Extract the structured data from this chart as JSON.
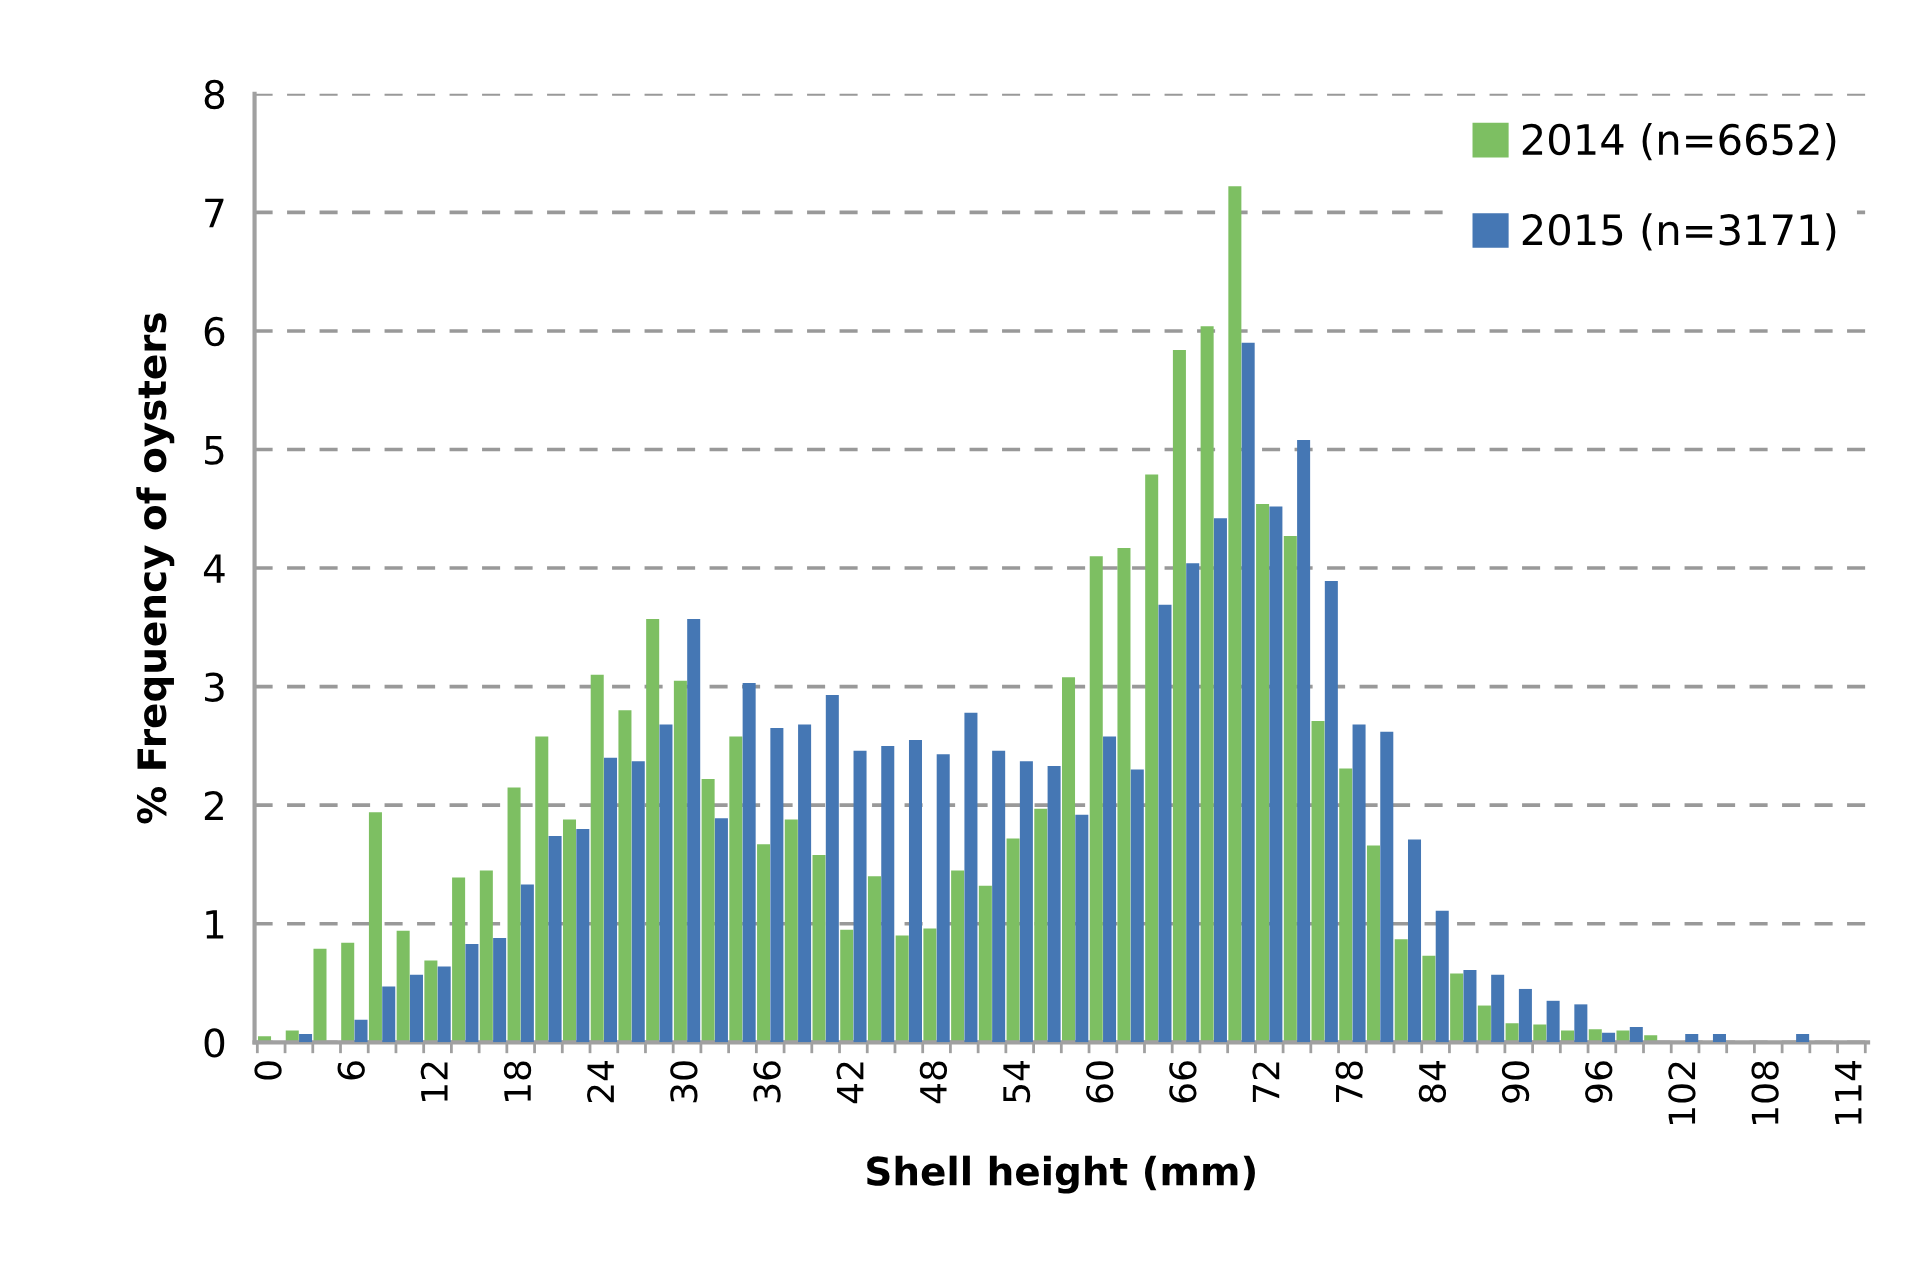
{
  "chart_data": {
    "type": "bar",
    "xlabel": "Shell height (mm)",
    "ylabel": "% Frequency of oysters",
    "categories": [
      "0",
      null,
      null,
      "6",
      null,
      null,
      "12",
      null,
      null,
      "18",
      null,
      null,
      "24",
      null,
      null,
      "30",
      null,
      null,
      "36",
      null,
      null,
      "42",
      null,
      null,
      "48",
      null,
      null,
      "54",
      null,
      null,
      "60",
      null,
      null,
      "66",
      null,
      null,
      "72",
      null,
      null,
      "78",
      null,
      null,
      "84",
      null,
      null,
      "90",
      null,
      null,
      "96",
      null,
      null,
      "102",
      null,
      null,
      "108",
      null,
      null,
      "114"
    ],
    "series": [
      {
        "name": "2014 (n=6652)",
        "color": "#7dbf62",
        "values": [
          0.05,
          0.1,
          0.79,
          0.84,
          1.94,
          0.94,
          0.69,
          1.39,
          1.45,
          2.15,
          2.58,
          1.88,
          3.1,
          2.8,
          3.57,
          3.05,
          2.22,
          2.58,
          1.67,
          1.88,
          1.58,
          0.95,
          1.4,
          0.9,
          0.96,
          1.45,
          1.32,
          1.72,
          1.97,
          3.08,
          4.1,
          4.17,
          4.79,
          5.84,
          6.04,
          7.22,
          4.54,
          4.27,
          2.71,
          2.31,
          1.66,
          0.87,
          0.73,
          0.58,
          0.31,
          0.16,
          0.15,
          0.1,
          0.11,
          0.1,
          0.06,
          0,
          0,
          0,
          0,
          0,
          0,
          0
        ]
      },
      {
        "name": "2015 (n=3171)",
        "color": "#4577b4",
        "values": [
          0,
          0.07,
          0,
          0.19,
          0.47,
          0.57,
          0.64,
          0.83,
          0.88,
          1.33,
          1.74,
          1.8,
          2.4,
          2.37,
          2.68,
          3.57,
          1.89,
          3.03,
          2.65,
          2.68,
          2.93,
          2.46,
          2.5,
          2.55,
          2.43,
          2.78,
          2.46,
          2.37,
          2.33,
          1.92,
          2.58,
          2.3,
          3.69,
          4.04,
          4.42,
          5.9,
          4.52,
          5.08,
          3.89,
          2.68,
          2.62,
          1.71,
          1.11,
          0.61,
          0.57,
          0.45,
          0.35,
          0.32,
          0.08,
          0.13,
          0,
          0.07,
          0.07,
          0,
          0,
          0.07,
          0,
          0
        ]
      }
    ],
    "ylim": [
      0,
      8
    ],
    "yticks": [
      0,
      1,
      2,
      3,
      4,
      5,
      6,
      7,
      8
    ],
    "grid": "y",
    "legend": "top right"
  }
}
